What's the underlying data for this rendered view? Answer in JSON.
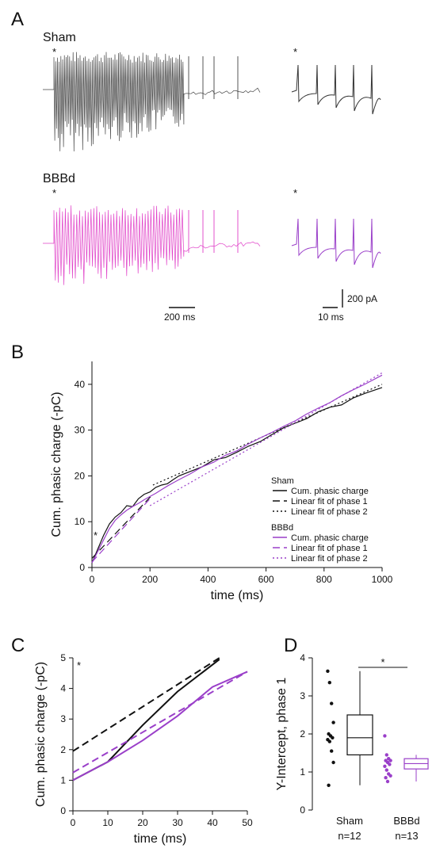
{
  "panels": {
    "a": {
      "letter": "A",
      "sham_label": "Sham",
      "bbbd_label": "BBBd",
      "star": "*",
      "scale_200ms": "200 ms",
      "scale_10ms": "10 ms",
      "scale_200pA": "200 pA"
    },
    "b": {
      "letter": "B"
    },
    "c": {
      "letter": "C"
    },
    "d": {
      "letter": "D"
    }
  },
  "colors": {
    "sham": "#111111",
    "bbbd": "#9a3fc9",
    "bbbd_trace": "#e040c8"
  },
  "chart_data": [
    {
      "id": "B",
      "type": "line",
      "xlabel": "time (ms)",
      "ylabel": "Cum. phasic charge (-pC)",
      "xlim": [
        0,
        1000
      ],
      "ylim": [
        0,
        45
      ],
      "xticks": [
        0,
        200,
        400,
        600,
        800,
        1000
      ],
      "yticks": [
        0,
        10,
        20,
        30,
        40
      ],
      "annotation": "*",
      "legend_groups": [
        {
          "title": "Sham",
          "entries": [
            "Cum. phasic charge",
            "Linear fit of phase 1",
            "Linear fit of phase 2"
          ]
        },
        {
          "title": "BBBd",
          "entries": [
            "Cum. phasic charge",
            "Linear fit of phase 1",
            "Linear fit of phase 2"
          ]
        }
      ],
      "series": [
        {
          "group": "Sham",
          "style": "solid",
          "color": "#111111",
          "x": [
            0,
            20,
            40,
            60,
            80,
            100,
            120,
            140,
            160,
            180,
            200,
            220,
            240,
            260,
            280,
            300,
            340,
            380,
            420,
            460,
            500,
            540,
            580,
            620,
            660,
            700,
            740,
            780,
            820,
            860,
            900,
            940,
            1000
          ],
          "y": [
            1,
            4,
            7,
            9.5,
            11,
            12,
            13.5,
            13.3,
            15,
            16,
            16.5,
            17.5,
            18,
            18.3,
            19.2,
            20,
            21,
            22,
            23.5,
            24,
            25.2,
            26.5,
            27.5,
            29,
            30.5,
            31.5,
            32.5,
            34,
            35,
            35.5,
            37,
            38,
            39.3
          ]
        },
        {
          "group": "Sham",
          "style": "dash",
          "color": "#111111",
          "x": [
            0,
            210
          ],
          "y": [
            2,
            16
          ]
        },
        {
          "group": "Sham",
          "style": "dot",
          "color": "#111111",
          "x": [
            210,
            1000
          ],
          "y": [
            18,
            40
          ]
        },
        {
          "group": "BBBd",
          "style": "solid",
          "color": "#9a3fc9",
          "x": [
            0,
            20,
            40,
            60,
            80,
            100,
            120,
            140,
            160,
            180,
            200,
            220,
            240,
            260,
            280,
            300,
            340,
            380,
            420,
            460,
            500,
            540,
            580,
            620,
            660,
            700,
            740,
            780,
            820,
            860,
            900,
            940,
            1000
          ],
          "y": [
            1,
            3.5,
            6,
            8.5,
            10.3,
            11.5,
            12.5,
            13.3,
            14,
            14.8,
            15.5,
            16.2,
            17,
            17.8,
            18.5,
            19.2,
            20.5,
            22,
            23,
            24.5,
            25.5,
            27,
            28.3,
            29.5,
            30.8,
            32,
            33.5,
            34.8,
            36,
            37.5,
            38.8,
            40,
            42
          ]
        },
        {
          "group": "BBBd",
          "style": "dash",
          "color": "#9a3fc9",
          "x": [
            0,
            200
          ],
          "y": [
            1.2,
            15
          ]
        },
        {
          "group": "BBBd",
          "style": "dot",
          "color": "#9a3fc9",
          "x": [
            200,
            1000
          ],
          "y": [
            13.5,
            42.5
          ]
        }
      ]
    },
    {
      "id": "C",
      "type": "line",
      "xlabel": "time (ms)",
      "ylabel": "Cum. phasic charge (-pC)",
      "xlim": [
        0,
        50
      ],
      "ylim": [
        0,
        5
      ],
      "xticks": [
        0,
        10,
        20,
        30,
        40,
        50
      ],
      "yticks": [
        0,
        1,
        2,
        3,
        4,
        5
      ],
      "annotation": "*",
      "series": [
        {
          "group": "Sham",
          "style": "solid",
          "color": "#111111",
          "x": [
            0,
            10,
            20,
            30,
            42
          ],
          "y": [
            1.0,
            1.6,
            2.8,
            3.9,
            4.95
          ]
        },
        {
          "group": "Sham",
          "style": "dash",
          "color": "#111111",
          "x": [
            0,
            42
          ],
          "y": [
            1.95,
            5.0
          ]
        },
        {
          "group": "BBBd",
          "style": "solid",
          "color": "#9a3fc9",
          "x": [
            0,
            10,
            20,
            30,
            40,
            50
          ],
          "y": [
            1.0,
            1.6,
            2.3,
            3.1,
            4.05,
            4.55
          ]
        },
        {
          "group": "BBBd",
          "style": "dash",
          "color": "#9a3fc9",
          "x": [
            0,
            50
          ],
          "y": [
            1.25,
            4.55
          ]
        }
      ]
    },
    {
      "id": "D",
      "type": "box",
      "ylabel": "Y-Intercept, phase 1",
      "ylim": [
        0,
        4
      ],
      "yticks": [
        0,
        1,
        2,
        3,
        4
      ],
      "significance": "*",
      "groups": [
        {
          "name": "Sham",
          "n_label": "n=12",
          "color": "#111111",
          "points": [
            3.65,
            3.35,
            2.8,
            2.3,
            2.0,
            1.95,
            1.9,
            1.85,
            1.8,
            1.55,
            1.25,
            0.65
          ],
          "box": {
            "min": 0.65,
            "q1": 1.45,
            "median": 1.9,
            "q3": 2.5,
            "max": 3.65
          }
        },
        {
          "name": "BBBd",
          "n_label": "n=13",
          "color": "#9a3fc9",
          "points": [
            1.95,
            1.45,
            1.35,
            1.3,
            1.3,
            1.25,
            1.2,
            1.15,
            1.05,
            0.95,
            0.9,
            0.85,
            0.75
          ],
          "box": {
            "min": 0.75,
            "q1": 1.08,
            "median": 1.22,
            "q3": 1.35,
            "max": 1.45
          }
        }
      ]
    }
  ]
}
